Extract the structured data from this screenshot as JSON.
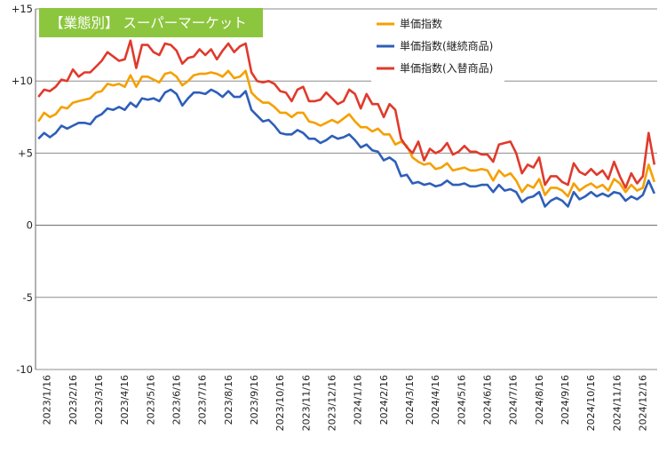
{
  "chart_data": {
    "type": "line",
    "title": "【業態別】 スーパーマーケット",
    "title_bg_color": "#8cc63e",
    "ylim": [
      -10,
      15
    ],
    "y_ticks": [
      15,
      10,
      5,
      0,
      -5,
      -10
    ],
    "y_tick_labels": [
      "+15",
      "+10",
      "+5",
      "0",
      "-5",
      "-10"
    ],
    "x_tick_labels": [
      "2023/1/16",
      "2023/2/16",
      "2023/3/16",
      "2023/4/16",
      "2023/5/16",
      "2023/6/16",
      "2023/7/16",
      "2023/8/16",
      "2023/9/16",
      "2023/10/16",
      "2023/11/16",
      "2023/12/16",
      "2024/1/16",
      "2024/2/16",
      "2024/3/16",
      "2024/4/16",
      "2024/5/16",
      "2024/6/16",
      "2024/7/16",
      "2024/8/16",
      "2024/9/16",
      "2024/10/16",
      "2024/11/16",
      "2024/12/16"
    ],
    "gridlines": "horizontal",
    "legend_position": "top-right",
    "series": [
      {
        "name": "単価指数",
        "color": "#f5a000",
        "values": [
          7.2,
          7.8,
          7.5,
          7.7,
          8.2,
          8.1,
          8.5,
          8.6,
          8.7,
          8.8,
          9.2,
          9.3,
          9.8,
          9.7,
          9.8,
          9.6,
          10.4,
          9.6,
          10.3,
          10.3,
          10.1,
          9.9,
          10.5,
          10.6,
          10.3,
          9.7,
          10.0,
          10.4,
          10.5,
          10.5,
          10.6,
          10.5,
          10.3,
          10.7,
          10.2,
          10.3,
          10.7,
          9.2,
          8.8,
          8.5,
          8.5,
          8.2,
          7.8,
          7.8,
          7.5,
          7.8,
          7.8,
          7.2,
          7.1,
          6.9,
          7.1,
          7.3,
          7.1,
          7.4,
          7.7,
          7.2,
          6.8,
          6.8,
          6.5,
          6.7,
          6.3,
          6.3,
          5.6,
          5.8,
          5.5,
          4.7,
          4.4,
          4.2,
          4.3,
          3.9,
          4.0,
          4.3,
          3.8,
          3.9,
          4.0,
          3.8,
          3.8,
          3.9,
          3.8,
          3.1,
          3.8,
          3.4,
          3.6,
          3.1,
          2.3,
          2.8,
          2.6,
          3.2,
          2.1,
          2.6,
          2.6,
          2.4,
          2.0,
          2.9,
          2.4,
          2.7,
          2.9,
          2.6,
          2.8,
          2.4,
          3.2,
          2.9,
          2.3,
          2.8,
          2.4,
          2.6,
          4.2,
          3.0
        ]
      },
      {
        "name": "単価指数(継続商品)",
        "color": "#2e5fb8",
        "values": [
          6.0,
          6.4,
          6.1,
          6.4,
          6.9,
          6.7,
          6.9,
          7.1,
          7.1,
          7.0,
          7.5,
          7.7,
          8.1,
          8.0,
          8.2,
          8.0,
          8.5,
          8.2,
          8.8,
          8.7,
          8.8,
          8.6,
          9.2,
          9.4,
          9.1,
          8.3,
          8.8,
          9.2,
          9.2,
          9.1,
          9.4,
          9.2,
          8.9,
          9.3,
          8.9,
          8.9,
          9.3,
          8.0,
          7.6,
          7.2,
          7.3,
          6.9,
          6.4,
          6.3,
          6.3,
          6.6,
          6.4,
          6.0,
          6.0,
          5.7,
          5.9,
          6.2,
          6.0,
          6.1,
          6.3,
          5.9,
          5.4,
          5.6,
          5.2,
          5.1,
          4.5,
          4.7,
          4.4,
          3.4,
          3.5,
          2.9,
          3.0,
          2.8,
          2.9,
          2.7,
          2.8,
          3.1,
          2.8,
          2.8,
          2.9,
          2.7,
          2.7,
          2.8,
          2.8,
          2.3,
          2.8,
          2.4,
          2.5,
          2.3,
          1.6,
          1.9,
          2.0,
          2.3,
          1.3,
          1.7,
          1.9,
          1.7,
          1.3,
          2.3,
          1.8,
          2.0,
          2.3,
          2.0,
          2.2,
          2.0,
          2.3,
          2.2,
          1.7,
          2.0,
          1.8,
          2.1,
          3.1,
          2.2
        ]
      },
      {
        "name": "単価指数(入替商品)",
        "color": "#e03a2c",
        "values": [
          8.9,
          9.4,
          9.3,
          9.6,
          10.1,
          10.0,
          10.8,
          10.3,
          10.6,
          10.6,
          11.0,
          11.4,
          12.0,
          11.7,
          11.4,
          11.5,
          12.8,
          10.9,
          12.5,
          12.5,
          12.0,
          11.8,
          12.6,
          12.5,
          12.1,
          11.2,
          11.6,
          11.7,
          12.2,
          11.8,
          12.2,
          11.5,
          12.1,
          12.6,
          12.0,
          12.4,
          12.6,
          10.6,
          10.0,
          9.9,
          10.0,
          9.8,
          9.3,
          9.2,
          8.6,
          9.4,
          9.6,
          8.6,
          8.6,
          8.7,
          9.2,
          8.8,
          8.4,
          8.6,
          9.4,
          9.1,
          8.1,
          9.1,
          8.4,
          8.4,
          7.5,
          8.4,
          8.0,
          6.0,
          5.4,
          5.0,
          5.8,
          4.5,
          5.3,
          5.0,
          5.2,
          5.7,
          4.9,
          5.1,
          5.5,
          5.1,
          5.1,
          4.9,
          4.9,
          4.4,
          5.6,
          5.7,
          5.8,
          5.0,
          3.6,
          4.2,
          4.0,
          4.7,
          2.8,
          3.4,
          3.4,
          3.0,
          2.8,
          4.3,
          3.7,
          3.5,
          3.9,
          3.5,
          3.8,
          3.2,
          4.4,
          3.4,
          2.6,
          3.6,
          2.9,
          3.4,
          6.4,
          4.2
        ]
      }
    ]
  }
}
